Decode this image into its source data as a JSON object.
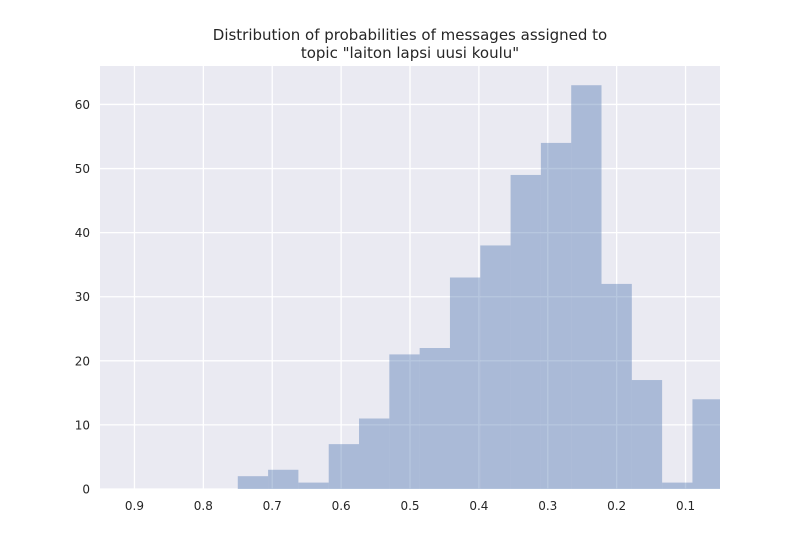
{
  "chart_data": {
    "type": "bar",
    "title_lines": [
      "Distribution of probabilities of messages assigned to",
      "topic \"laiton lapsi uusi koulu\""
    ],
    "xlabel": "",
    "ylabel": "",
    "x_inverted": true,
    "xlim": [
      0.95,
      0.05
    ],
    "ylim": [
      0,
      66
    ],
    "x_ticks": [
      0.9,
      0.8,
      0.7,
      0.6,
      0.5,
      0.4,
      0.3,
      0.2,
      0.1
    ],
    "x_tick_labels": [
      "0.9",
      "0.8",
      "0.7",
      "0.6",
      "0.5",
      "0.4",
      "0.3",
      "0.2",
      "0.1"
    ],
    "y_ticks": [
      0,
      10,
      20,
      30,
      40,
      50,
      60
    ],
    "y_tick_labels": [
      "0",
      "10",
      "20",
      "30",
      "40",
      "50",
      "60"
    ],
    "bins": [
      {
        "x_start": 0.75,
        "x_end": 0.706,
        "value": 2
      },
      {
        "x_start": 0.706,
        "x_end": 0.662,
        "value": 3
      },
      {
        "x_start": 0.662,
        "x_end": 0.618,
        "value": 1
      },
      {
        "x_start": 0.618,
        "x_end": 0.574,
        "value": 7
      },
      {
        "x_start": 0.574,
        "x_end": 0.53,
        "value": 11
      },
      {
        "x_start": 0.53,
        "x_end": 0.486,
        "value": 21
      },
      {
        "x_start": 0.486,
        "x_end": 0.442,
        "value": 22
      },
      {
        "x_start": 0.442,
        "x_end": 0.398,
        "value": 33
      },
      {
        "x_start": 0.398,
        "x_end": 0.354,
        "value": 38
      },
      {
        "x_start": 0.354,
        "x_end": 0.31,
        "value": 49
      },
      {
        "x_start": 0.31,
        "x_end": 0.266,
        "value": 54
      },
      {
        "x_start": 0.266,
        "x_end": 0.222,
        "value": 63
      },
      {
        "x_start": 0.222,
        "x_end": 0.178,
        "value": 32
      },
      {
        "x_start": 0.178,
        "x_end": 0.134,
        "value": 17
      },
      {
        "x_start": 0.134,
        "x_end": 0.09,
        "value": 1
      },
      {
        "x_start": 0.09,
        "x_end": 0.046,
        "value": 14
      }
    ],
    "grid": true,
    "legend": "none",
    "colors": {
      "plot_background": "#eaeaf2",
      "grid": "#ffffff",
      "bar_fill": "#4c72b0",
      "bar_opacity": 0.4,
      "text": "#262626"
    }
  }
}
